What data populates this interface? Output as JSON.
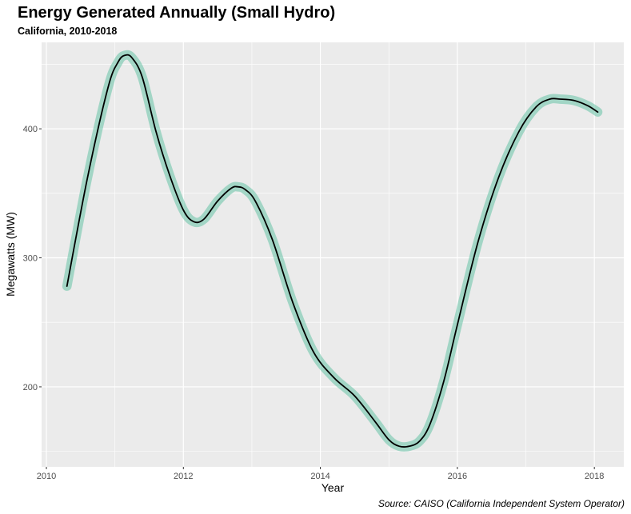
{
  "chart_data": {
    "type": "line",
    "title": "Energy Generated Annually (Small Hydro)",
    "subtitle": "California, 2010-2018",
    "xlabel": "Year",
    "ylabel": "Megawatts (MW)",
    "caption": "Source: CAISO (California Independent System Operator)",
    "xlim": [
      2009.93,
      2018.43
    ],
    "ylim": [
      138,
      467
    ],
    "x_ticks": [
      2010,
      2012,
      2014,
      2016,
      2018
    ],
    "x_tick_labels": [
      "2010",
      "2012",
      "2014",
      "2016",
      "2018"
    ],
    "y_ticks": [
      200,
      300,
      400
    ],
    "y_tick_labels": [
      "200",
      "300",
      "400"
    ],
    "grid": true,
    "legend": "none",
    "colors": {
      "panel_background": "#ebebeb",
      "grid_major": "#ffffff",
      "line": "#000000",
      "band": "#66c2a5"
    },
    "series": [
      {
        "x": [
          2010.3,
          2010.6,
          2010.9,
          2011.05,
          2011.15,
          2011.25,
          2011.4,
          2011.6,
          2011.8,
          2012.0,
          2012.15,
          2012.3,
          2012.5,
          2012.7,
          2012.8,
          2012.9,
          2013.05,
          2013.3,
          2013.6,
          2013.9,
          2014.2,
          2014.5,
          2014.8,
          2015.0,
          2015.15,
          2015.3,
          2015.45,
          2015.6,
          2015.8,
          2016.0,
          2016.3,
          2016.6,
          2016.9,
          2017.15,
          2017.35,
          2017.5,
          2017.7,
          2017.9,
          2018.05
        ],
        "y": [
          278,
          362,
          432,
          452,
          457,
          455,
          440,
          398,
          364,
          337,
          328,
          330,
          344,
          354,
          355,
          353,
          344,
          314,
          265,
          227,
          207,
          193,
          173,
          159,
          154,
          154,
          158,
          171,
          204,
          248,
          312,
          362,
          398,
          417,
          423,
          423,
          422,
          418,
          413
        ],
        "band": 3
      }
    ]
  }
}
